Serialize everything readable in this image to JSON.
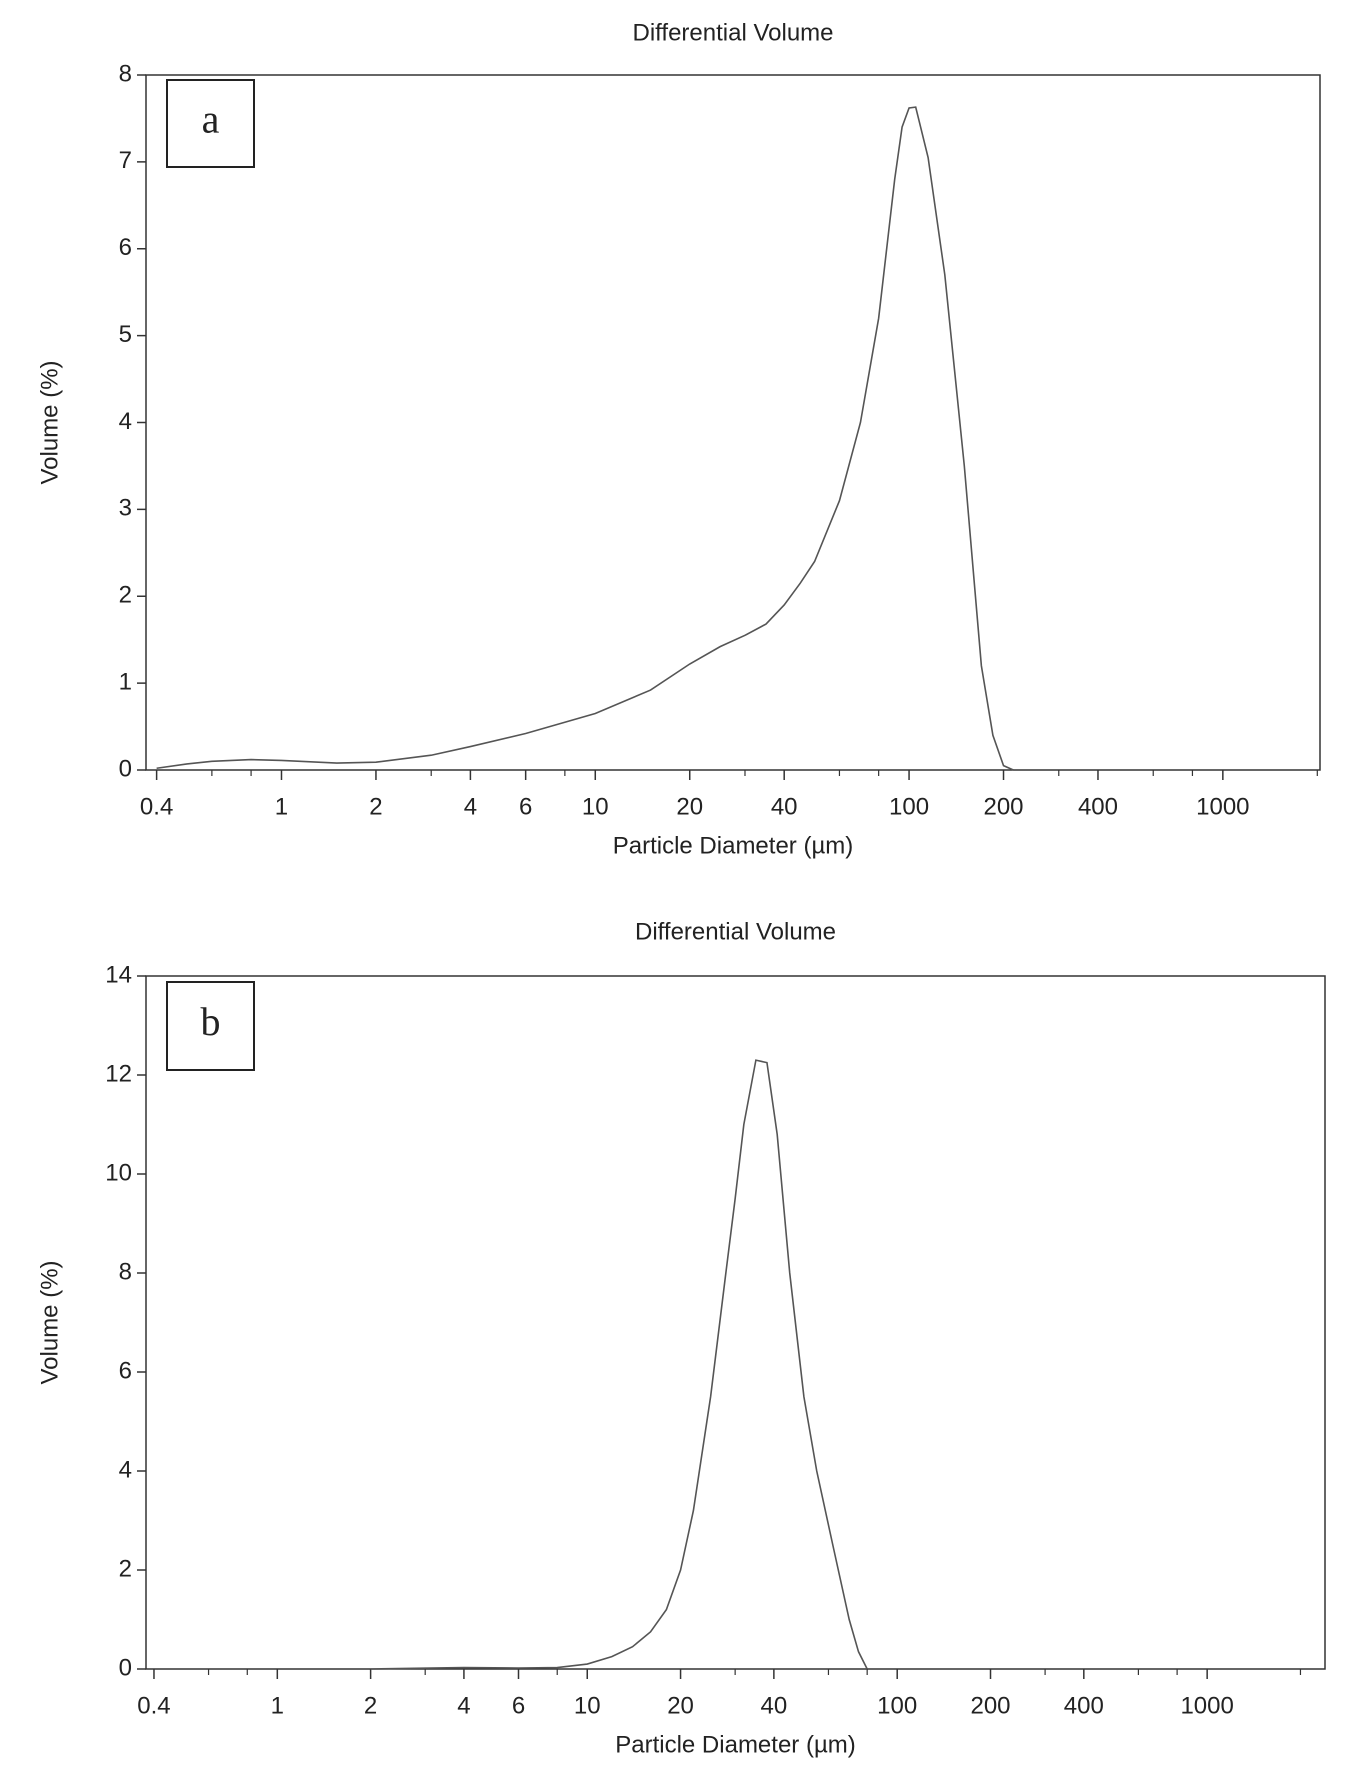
{
  "chart_data": [
    {
      "type": "line",
      "title": "Differential Volume",
      "panel_label": "a",
      "xlabel": "Particle Diameter (µm)",
      "ylabel": "Volume (%)",
      "xscale": "log",
      "xlim": [
        0.37,
        2040
      ],
      "ylim": [
        0,
        8
      ],
      "xticks": [
        0.4,
        1,
        2,
        4,
        6,
        10,
        20,
        40,
        100,
        200,
        400,
        1000
      ],
      "xminor_ticks": [
        0.6,
        0.8,
        3,
        8,
        30,
        60,
        80,
        300,
        600,
        800,
        2000
      ],
      "yticks": [
        0,
        1,
        2,
        3,
        4,
        5,
        6,
        7,
        8
      ],
      "x": [
        0.4,
        0.5,
        0.6,
        0.8,
        1,
        1.5,
        2,
        3,
        4,
        6,
        10,
        15,
        20,
        25,
        30,
        35,
        40,
        45,
        50,
        60,
        70,
        80,
        90,
        95,
        100,
        105,
        115,
        130,
        150,
        170,
        185,
        200,
        215
      ],
      "series": [
        {
          "color": "#555555",
          "values": [
            0.02,
            0.07,
            0.1,
            0.12,
            0.11,
            0.08,
            0.09,
            0.17,
            0.27,
            0.42,
            0.65,
            0.92,
            1.22,
            1.42,
            1.55,
            1.68,
            1.9,
            2.15,
            2.4,
            3.1,
            4.0,
            5.2,
            6.8,
            7.4,
            7.62,
            7.63,
            7.05,
            5.7,
            3.5,
            1.2,
            0.4,
            0.05,
            0
          ]
        }
      ]
    },
    {
      "type": "line",
      "title": "Differential Volume",
      "panel_label": "b",
      "xlabel": "Particle Diameter (µm)",
      "ylabel": "Volume (%)",
      "xscale": "log",
      "xlim": [
        0.377,
        2400
      ],
      "ylim": [
        0,
        14
      ],
      "xticks": [
        0.4,
        1,
        2,
        4,
        6,
        10,
        20,
        40,
        100,
        200,
        400,
        1000
      ],
      "xminor_ticks": [
        0.6,
        0.8,
        3,
        8,
        30,
        60,
        80,
        300,
        600,
        800,
        2000
      ],
      "yticks": [
        0,
        2,
        4,
        6,
        8,
        10,
        12,
        14
      ],
      "x": [
        2,
        4,
        6,
        8,
        10,
        12,
        14,
        16,
        18,
        20,
        22,
        25,
        28,
        30,
        32,
        35,
        38,
        41,
        45,
        50,
        55,
        62,
        70,
        75,
        80
      ],
      "series": [
        {
          "color": "#555555",
          "values": [
            0,
            0.03,
            0.02,
            0.03,
            0.1,
            0.25,
            0.45,
            0.75,
            1.2,
            2.0,
            3.2,
            5.5,
            8.0,
            9.5,
            11.0,
            12.3,
            12.25,
            10.8,
            8.0,
            5.5,
            4.0,
            2.5,
            1.0,
            0.35,
            0
          ]
        }
      ]
    }
  ]
}
